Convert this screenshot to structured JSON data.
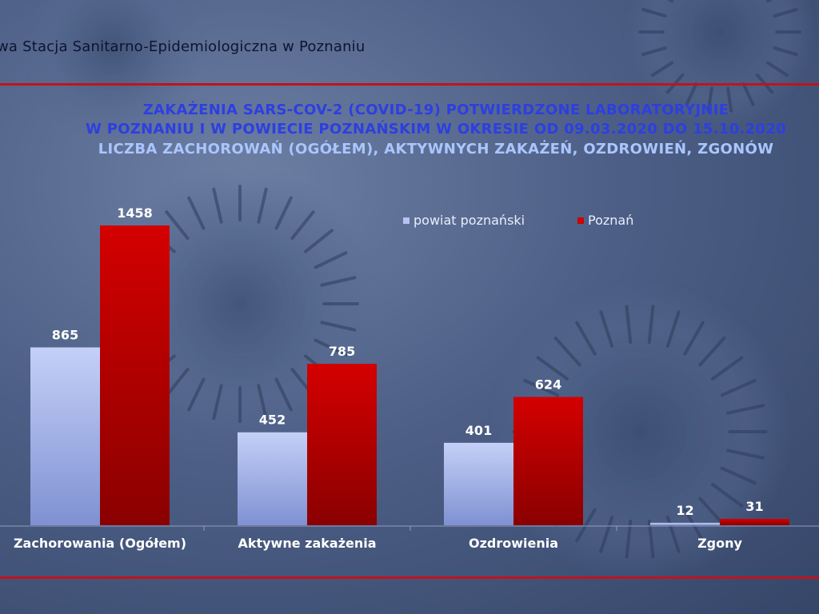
{
  "header": {
    "organization": "wa Stacja Sanitarno-Epidemiologiczna w Poznaniu"
  },
  "colors": {
    "series_powiat": "#b6c4f2",
    "series_poznan": "#cc0000",
    "title_primary": "#2d3fe0",
    "title_secondary": "#aac6ff",
    "divider": "#c0131c"
  },
  "chart_data": {
    "type": "bar",
    "title": "ZAKAŻENIA SARS-COV-2 (COVID-19) POTWIERDZONE LABORATORYJNIE",
    "title_line2": "W POZNANIU I W POWIECIE POZNAŃSKIM W OKRESIE OD 09.03.2020 DO 15.10.2020",
    "subtitle": "LICZBA ZACHOROWAŃ (OGÓŁEM), AKTYWNYCH ZAKAŻEŃ, OZDROWIEŃ, ZGONÓW",
    "categories": [
      "Zachorowania (Ogółem)",
      "Aktywne zakażenia",
      "Ozdrowienia",
      "Zgony"
    ],
    "series": [
      {
        "name": "powiat poznański",
        "values": [
          865,
          452,
          401,
          12
        ]
      },
      {
        "name": "Poznań",
        "values": [
          1458,
          785,
          624,
          31
        ]
      }
    ],
    "ylim": [
      0,
      1600
    ],
    "grid": false,
    "legend_position": "top-right",
    "data_labels": true
  }
}
